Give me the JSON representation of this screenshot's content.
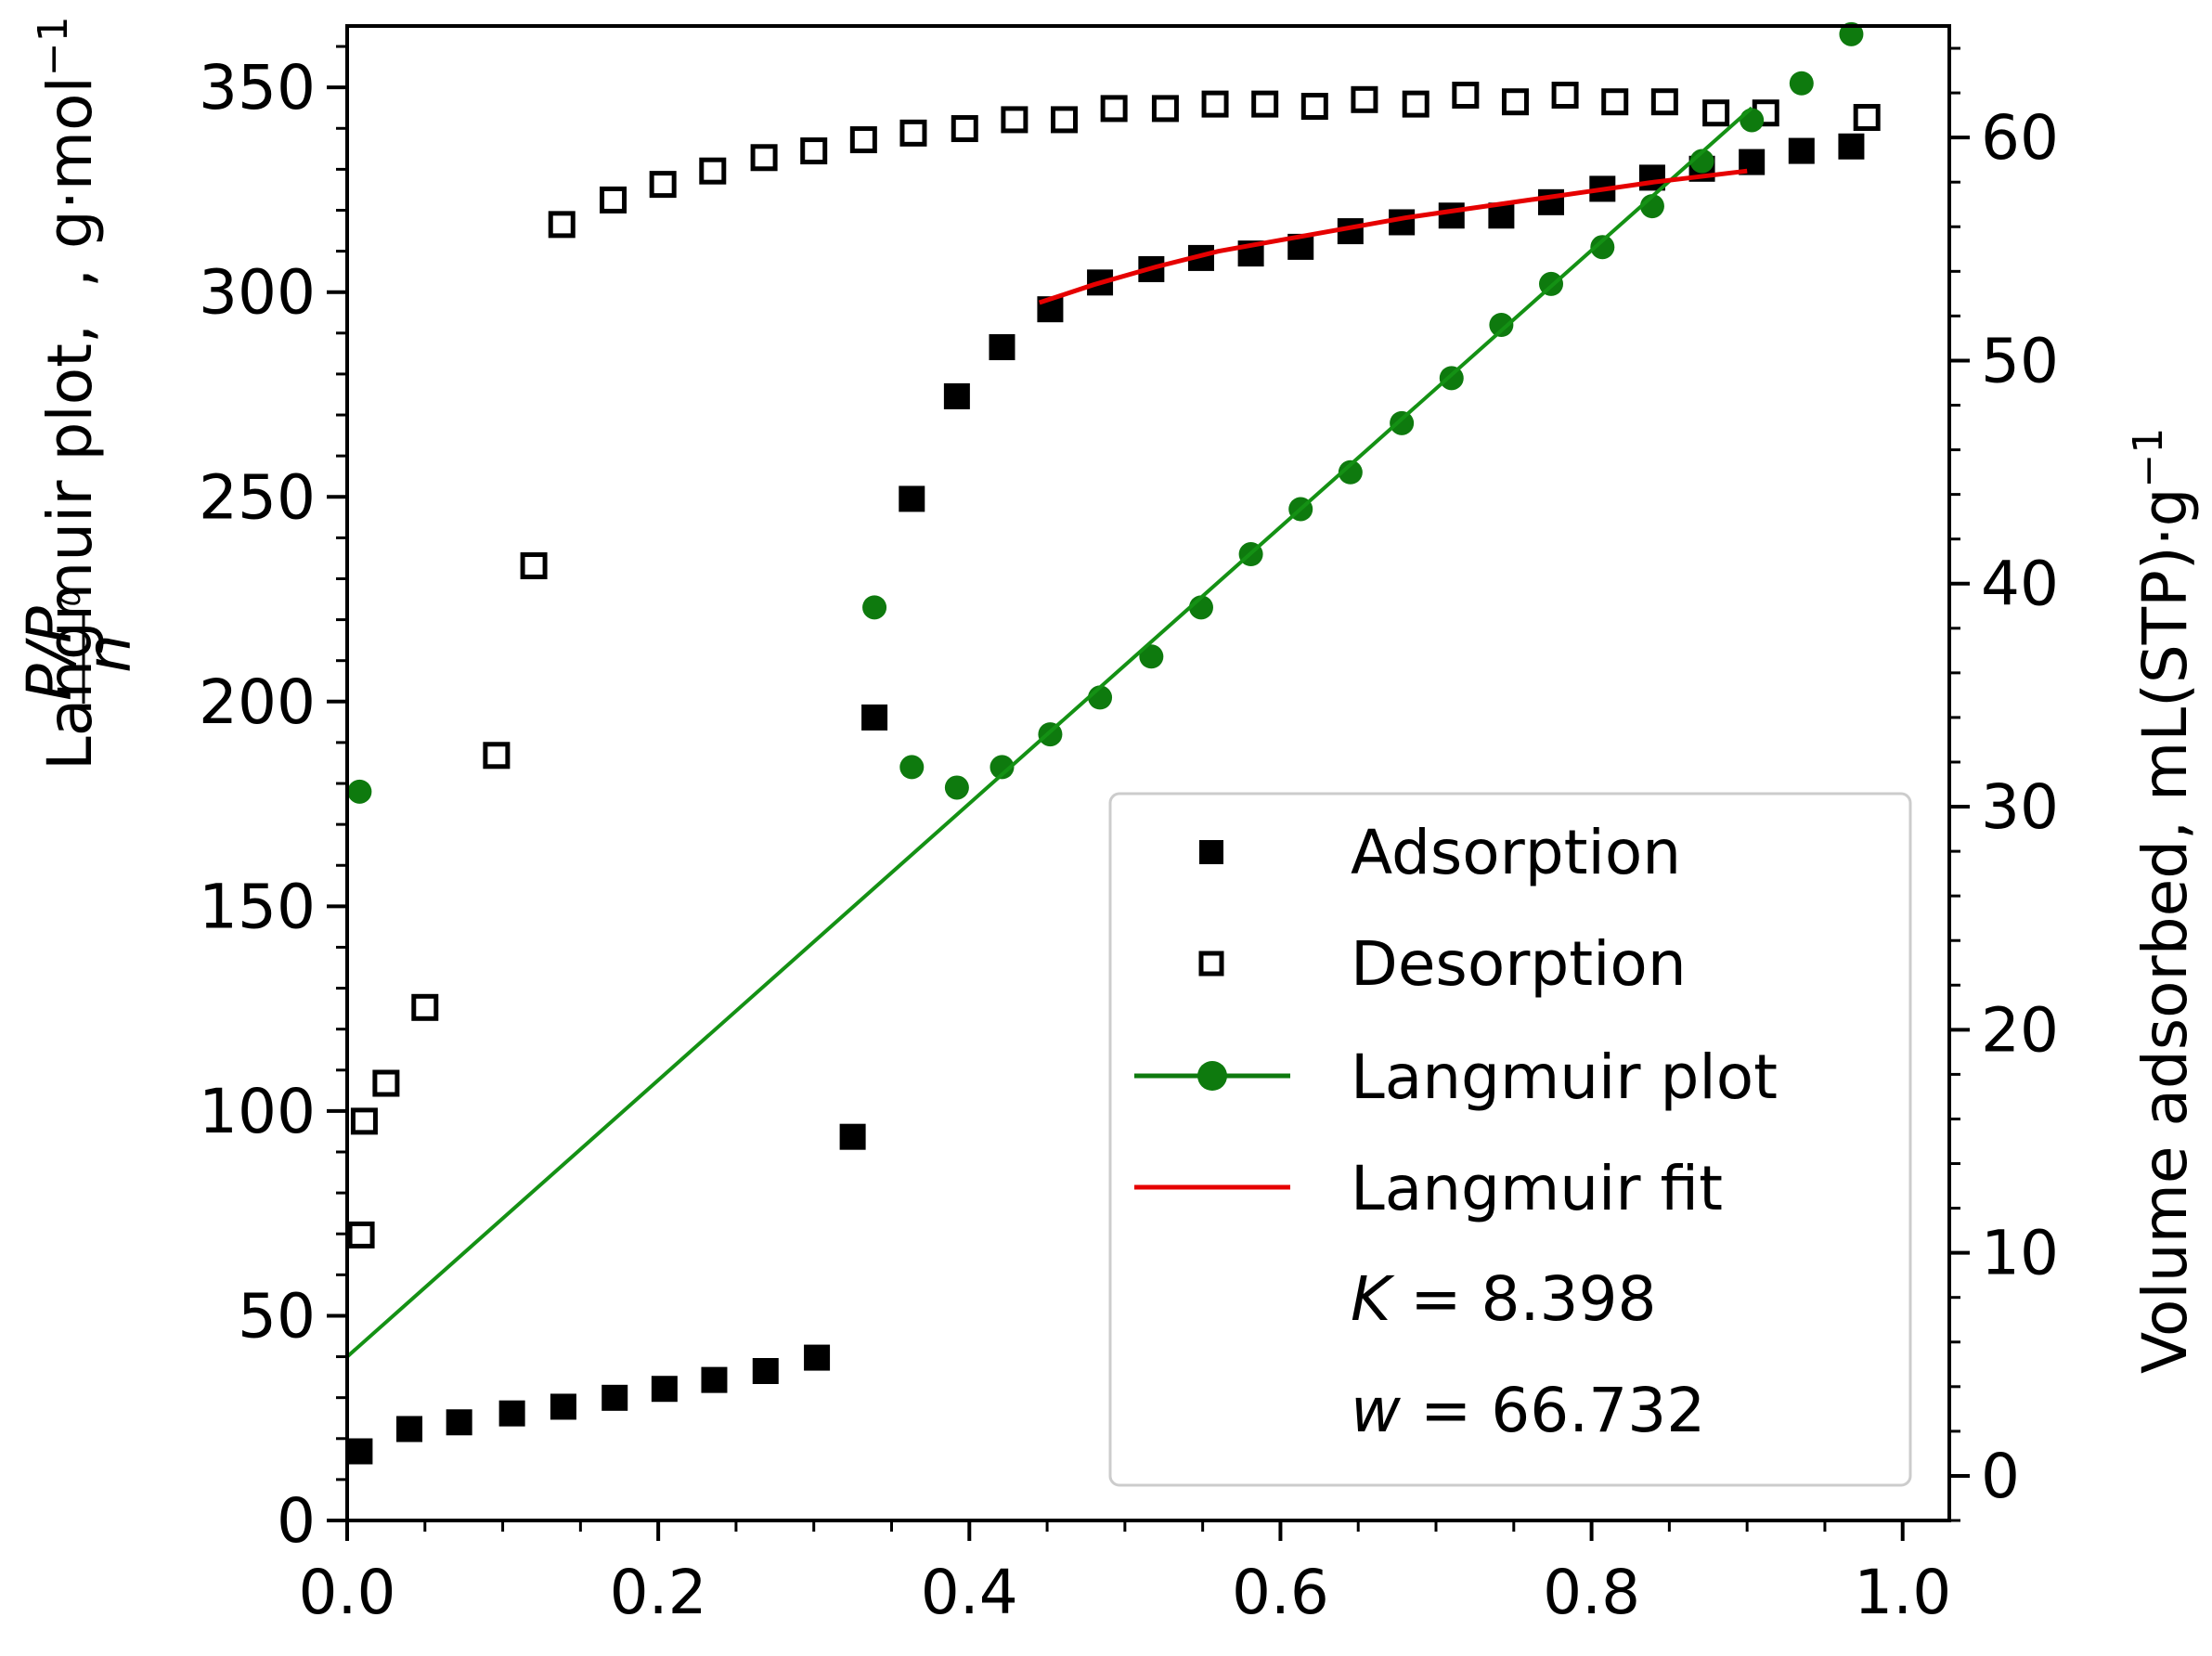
{
  "chart_data": {
    "type": "scatter",
    "x_axis": {
      "range": [
        0.0,
        1.03
      ],
      "ticks": [
        0.0,
        0.2,
        0.4,
        0.6,
        0.8,
        1.0
      ],
      "tick_labels": [
        "0.0",
        "0.2",
        "0.4",
        "0.6",
        "0.8",
        "1.0"
      ],
      "label": ""
    },
    "y_left": {
      "label_prefix": "Langmuir plot, ",
      "label_frac_num": "P/P",
      "label_frac_sub": "0",
      "label_frac_den": "n",
      "label_suffix": ", g·mol",
      "label_sup": "−1",
      "range": [
        0,
        365
      ],
      "ticks": [
        0,
        50,
        100,
        150,
        200,
        250,
        300,
        350
      ],
      "tick_labels": [
        "0",
        "50",
        "100",
        "150",
        "200",
        "250",
        "300",
        "350"
      ]
    },
    "y_right": {
      "label": "Volume adsorbed, mL(STP)·g",
      "label_sup": "−1",
      "range": [
        -2,
        65
      ],
      "ticks": [
        0,
        10,
        20,
        30,
        40,
        50,
        60
      ],
      "tick_labels": [
        "0",
        "10",
        "20",
        "30",
        "40",
        "50",
        "60"
      ]
    },
    "series": [
      {
        "name": "Adsorption",
        "axis": "right",
        "marker": "filled-square",
        "color": "#000000",
        "x": [
          0.008,
          0.04,
          0.072,
          0.106,
          0.139,
          0.172,
          0.204,
          0.236,
          0.269,
          0.302,
          0.325,
          0.339,
          0.363,
          0.392,
          0.421,
          0.452,
          0.484,
          0.517,
          0.549,
          0.581,
          0.613,
          0.645,
          0.678,
          0.71,
          0.742,
          0.774,
          0.807,
          0.839,
          0.871,
          0.903,
          0.935,
          0.967
        ],
        "y": [
          1.1,
          2.1,
          2.4,
          2.8,
          3.1,
          3.5,
          3.9,
          4.3,
          4.7,
          5.3,
          15.2,
          34.0,
          43.8,
          48.4,
          50.6,
          52.3,
          53.5,
          54.1,
          54.6,
          54.8,
          55.1,
          55.8,
          56.2,
          56.5,
          56.5,
          57.1,
          57.7,
          58.2,
          58.6,
          58.9,
          59.4,
          59.6
        ]
      },
      {
        "name": "Desorption",
        "axis": "right",
        "marker": "open-square",
        "color": "#000000",
        "x": [
          0.009,
          0.011,
          0.025,
          0.05,
          0.096,
          0.12,
          0.138,
          0.171,
          0.203,
          0.235,
          0.268,
          0.3,
          0.332,
          0.364,
          0.397,
          0.429,
          0.461,
          0.493,
          0.526,
          0.558,
          0.59,
          0.622,
          0.654,
          0.687,
          0.719,
          0.751,
          0.783,
          0.815,
          0.847,
          0.88,
          0.912,
          0.977
        ],
        "y": [
          10.8,
          15.9,
          17.6,
          21.0,
          32.3,
          40.8,
          56.1,
          57.2,
          57.9,
          58.5,
          59.1,
          59.4,
          59.9,
          60.2,
          60.4,
          60.8,
          60.8,
          61.3,
          61.3,
          61.5,
          61.5,
          61.4,
          61.7,
          61.5,
          61.9,
          61.6,
          61.9,
          61.6,
          61.6,
          61.1,
          61.1,
          60.9
        ]
      },
      {
        "name": "Langmuir plot",
        "axis": "left",
        "marker": "filled-circle",
        "color": "#0e7a0e",
        "x": [
          0.008,
          0.339,
          0.363,
          0.392,
          0.421,
          0.452,
          0.484,
          0.517,
          0.549,
          0.581,
          0.613,
          0.645,
          0.678,
          0.71,
          0.742,
          0.774,
          0.807,
          0.839,
          0.871,
          0.903,
          0.935,
          0.967
        ],
        "y": [
          178,
          223,
          184,
          179,
          184,
          192,
          201,
          211,
          223,
          236,
          247,
          256,
          268,
          279,
          292,
          302,
          311,
          321,
          332,
          342,
          351,
          363
        ]
      },
      {
        "name": "Langmuir plot line",
        "axis": "left",
        "color": "#149114",
        "x": [
          0.0,
          0.903
        ],
        "y": [
          40,
          345
        ]
      },
      {
        "name": "Langmuir fit",
        "axis": "right",
        "color": "#e60000",
        "x": [
          0.445,
          0.48,
          0.52,
          0.56,
          0.6,
          0.64,
          0.68,
          0.72,
          0.76,
          0.8,
          0.84,
          0.9
        ],
        "y": [
          52.6,
          53.4,
          54.2,
          54.9,
          55.4,
          55.9,
          56.4,
          56.8,
          57.2,
          57.6,
          58.0,
          58.5
        ]
      }
    ],
    "legend": {
      "position": "bottom-right",
      "entries": [
        "Adsorption",
        "Desorption",
        "Langmuir plot",
        "Langmuir fit"
      ],
      "k_label": "K",
      "k_value": " = 8.398",
      "w_label": "w",
      "w_value": " = 66.732"
    }
  }
}
